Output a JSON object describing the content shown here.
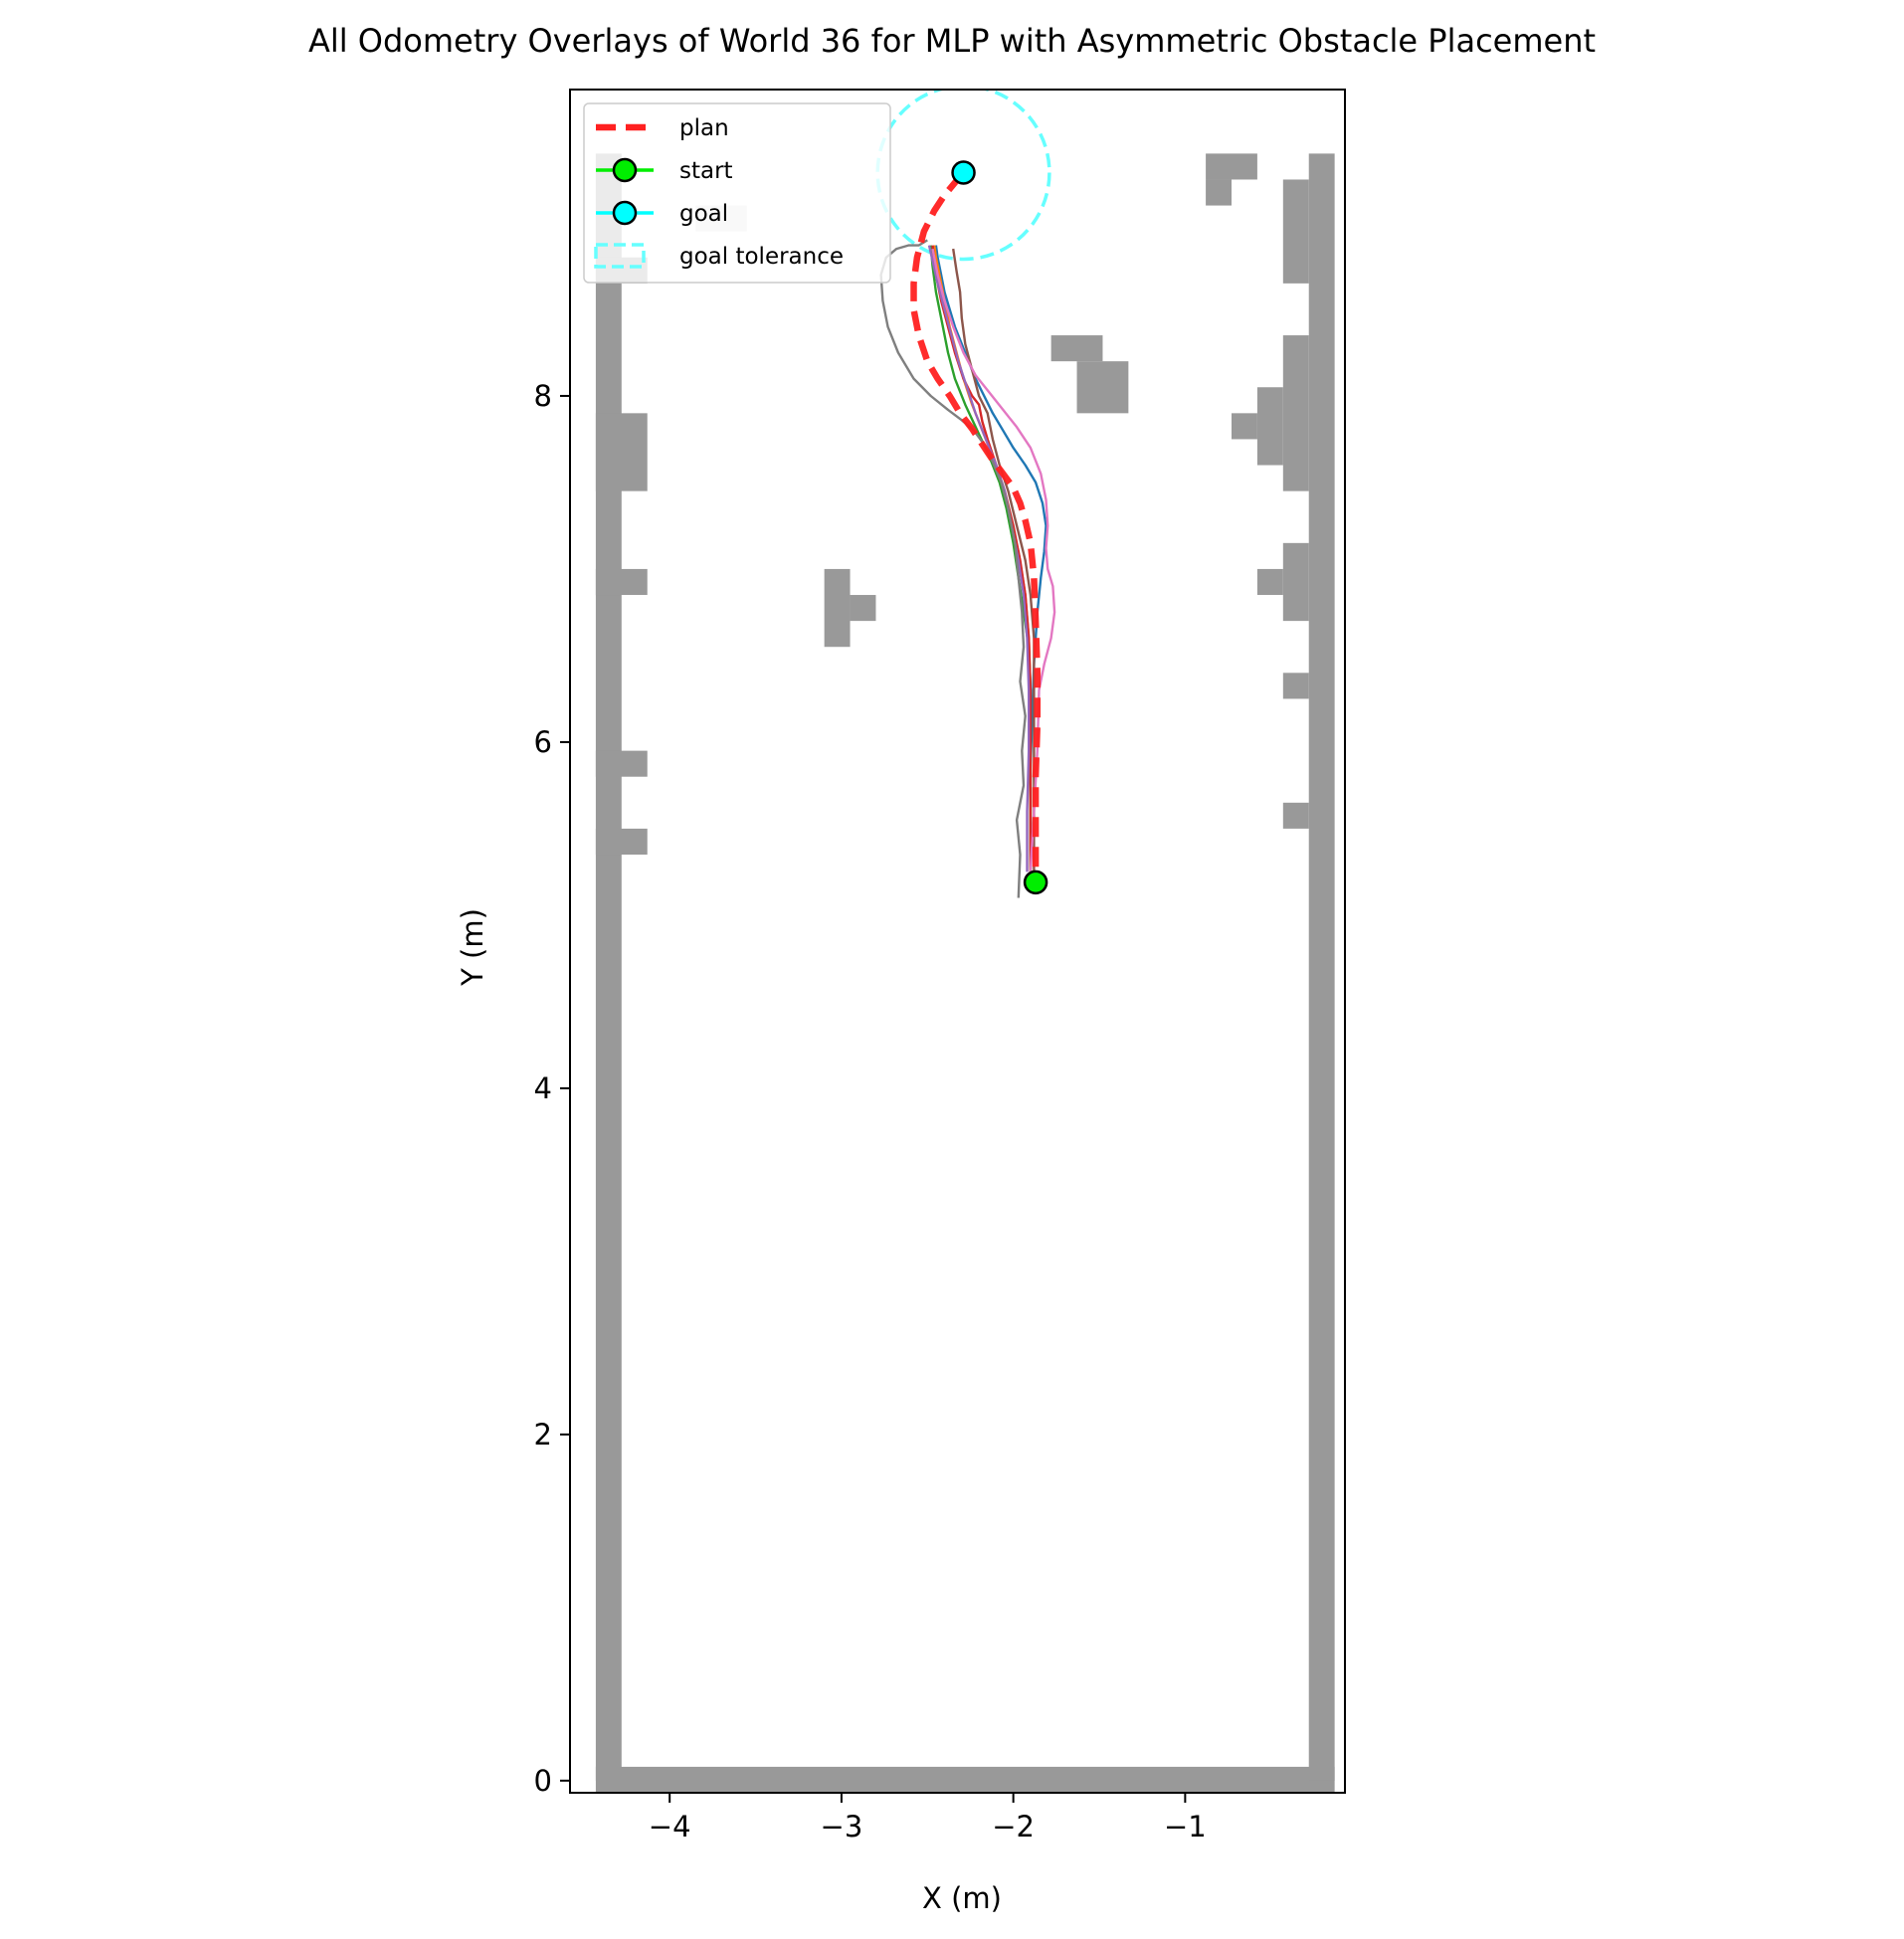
{
  "chart_data": {
    "type": "line",
    "title": "All Odometry Overlays of World 36 for MLP with Asymmetric Obstacle Placement",
    "xlabel": "X (m)",
    "ylabel": "Y (m)",
    "xlim": [
      -4.58,
      -0.07
    ],
    "ylim": [
      -0.07,
      9.77
    ],
    "x_ticks": [
      -4,
      -3,
      -2,
      -1
    ],
    "x_tick_labels": [
      "−4",
      "−3",
      "−2",
      "−1"
    ],
    "y_ticks": [
      0,
      2,
      4,
      6,
      8
    ],
    "y_tick_labels": [
      "0",
      "2",
      "4",
      "6",
      "8"
    ],
    "grid": false,
    "legend": {
      "placement": "top-left",
      "entries": [
        {
          "label": "plan",
          "color": "#ff2020",
          "style": "dashed"
        },
        {
          "label": "start",
          "color": "#00ee00",
          "style": "line-marker"
        },
        {
          "label": "goal",
          "color": "#00ffff",
          "style": "line-marker"
        },
        {
          "label": "goal tolerance",
          "color": "#66ffff",
          "style": "dashed-patch"
        }
      ]
    },
    "map": {
      "resolution": 0.15,
      "occupied_color": "#999999",
      "unknown_color": "#e0e0e0",
      "occupied_cells": [
        [
          -4.43,
          -4.28,
          0.0,
          9.4
        ],
        [
          -4.43,
          -4.13,
          7.45,
          7.9
        ],
        [
          -4.43,
          -4.13,
          6.85,
          7.0
        ],
        [
          -4.43,
          -4.13,
          5.8,
          5.95
        ],
        [
          -4.43,
          -4.13,
          5.35,
          5.5
        ],
        [
          -4.43,
          -4.13,
          8.65,
          8.8
        ],
        [
          -4.43,
          -0.13,
          -0.07,
          0.08
        ],
        [
          -0.28,
          -0.13,
          0.0,
          9.4
        ],
        [
          -0.43,
          -0.28,
          8.65,
          9.25
        ],
        [
          -0.43,
          -0.28,
          7.45,
          8.35
        ],
        [
          -0.58,
          -0.43,
          7.6,
          8.05
        ],
        [
          -0.73,
          -0.58,
          7.75,
          7.9
        ],
        [
          -0.43,
          -0.28,
          6.7,
          7.15
        ],
        [
          -0.58,
          -0.43,
          6.85,
          7.0
        ],
        [
          -0.43,
          -0.28,
          6.25,
          6.4
        ],
        [
          -0.43,
          -0.28,
          5.5,
          5.65
        ],
        [
          -0.88,
          -0.58,
          9.25,
          9.4
        ],
        [
          -0.88,
          -0.73,
          9.1,
          9.25
        ],
        [
          -3.1,
          -2.95,
          6.55,
          7.0
        ],
        [
          -2.95,
          -2.8,
          6.7,
          6.85
        ],
        [
          -1.78,
          -1.48,
          8.2,
          8.35
        ],
        [
          -1.63,
          -1.33,
          7.9,
          8.2
        ]
      ],
      "unknown_cells": [
        [
          -3.85,
          -3.55,
          8.95,
          9.1
        ]
      ]
    },
    "plan": {
      "name": "plan",
      "color": "#ff2020",
      "x": [
        -1.87,
        -1.87,
        -1.87,
        -1.86,
        -1.86,
        -1.87,
        -1.88,
        -1.9,
        -1.93,
        -1.96,
        -2.0,
        -2.06,
        -2.12,
        -2.18,
        -2.24,
        -2.31,
        -2.37,
        -2.44,
        -2.5,
        -2.55,
        -2.58,
        -2.58,
        -2.56,
        -2.52,
        -2.46,
        -2.4,
        -2.35,
        -2.3
      ],
      "y": [
        5.28,
        5.5,
        5.8,
        6.1,
        6.4,
        6.7,
        6.95,
        7.15,
        7.28,
        7.38,
        7.47,
        7.55,
        7.63,
        7.72,
        7.81,
        7.9,
        8.0,
        8.1,
        8.2,
        8.35,
        8.5,
        8.65,
        8.8,
        8.95,
        9.07,
        9.16,
        9.22,
        9.28
      ]
    },
    "start": {
      "x": -1.87,
      "y": 5.19,
      "color": "#00ee00"
    },
    "goal": {
      "x": -2.29,
      "y": 9.29,
      "color": "#00ffff",
      "tolerance": 0.5
    },
    "series": [
      {
        "color": "#1f77b4",
        "x": [
          -1.9,
          -1.9,
          -1.9,
          -1.89,
          -1.88,
          -1.86,
          -1.84,
          -1.82,
          -1.81,
          -1.83,
          -1.87,
          -1.93,
          -2.0,
          -2.06,
          -2.12,
          -2.17,
          -2.22,
          -2.26,
          -2.3,
          -2.34,
          -2.37,
          -2.4,
          -2.42,
          -2.44,
          -2.45
        ],
        "y": [
          5.25,
          5.55,
          5.85,
          6.15,
          6.45,
          6.75,
          6.95,
          7.1,
          7.25,
          7.38,
          7.5,
          7.6,
          7.7,
          7.8,
          7.9,
          8.0,
          8.1,
          8.2,
          8.3,
          8.4,
          8.5,
          8.6,
          8.7,
          8.8,
          8.87
        ]
      },
      {
        "color": "#ff7f0e",
        "x": [
          -1.9,
          -1.9,
          -1.9,
          -1.9,
          -1.91,
          -1.93,
          -1.97,
          -2.02,
          -2.07,
          -2.12,
          -2.18,
          -2.24,
          -2.29,
          -2.33,
          -2.37,
          -2.4,
          -2.43,
          -2.45,
          -2.46
        ],
        "y": [
          5.25,
          5.6,
          5.95,
          6.3,
          6.6,
          6.85,
          7.1,
          7.3,
          7.5,
          7.65,
          7.8,
          7.95,
          8.1,
          8.25,
          8.4,
          8.55,
          8.7,
          8.8,
          8.87
        ]
      },
      {
        "color": "#2ca02c",
        "x": [
          -1.9,
          -1.9,
          -1.9,
          -1.9,
          -1.91,
          -1.94,
          -1.97,
          -2.0,
          -2.04,
          -2.08,
          -2.14,
          -2.21,
          -2.28,
          -2.34,
          -2.38,
          -2.42,
          -2.45,
          -2.47,
          -2.48
        ],
        "y": [
          5.25,
          5.6,
          5.95,
          6.3,
          6.55,
          6.75,
          6.95,
          7.15,
          7.35,
          7.5,
          7.65,
          7.8,
          7.95,
          8.1,
          8.25,
          8.45,
          8.6,
          8.75,
          8.87
        ]
      },
      {
        "color": "#d62728",
        "x": [
          -1.9,
          -1.9,
          -1.9,
          -1.9,
          -1.91,
          -1.93,
          -1.96,
          -2.0,
          -2.05,
          -2.1,
          -2.15,
          -2.18,
          -2.2,
          -2.24,
          -2.29,
          -2.34,
          -2.38,
          -2.42,
          -2.45,
          -2.47
        ],
        "y": [
          5.25,
          5.6,
          5.95,
          6.3,
          6.6,
          6.85,
          7.05,
          7.25,
          7.45,
          7.6,
          7.75,
          7.85,
          7.95,
          8.0,
          8.1,
          8.25,
          8.4,
          8.55,
          8.7,
          8.87
        ]
      },
      {
        "color": "#9467bd",
        "x": [
          -1.92,
          -1.92,
          -1.91,
          -1.91,
          -1.92,
          -1.94,
          -1.97,
          -2.01,
          -2.05,
          -2.1,
          -2.16,
          -2.22,
          -2.27,
          -2.32,
          -2.36,
          -2.4,
          -2.44,
          -2.47,
          -2.49
        ],
        "y": [
          5.25,
          5.6,
          5.95,
          6.3,
          6.6,
          6.85,
          7.05,
          7.25,
          7.45,
          7.6,
          7.75,
          7.9,
          8.05,
          8.2,
          8.35,
          8.5,
          8.65,
          8.78,
          8.87
        ]
      },
      {
        "color": "#8c564b",
        "x": [
          -1.88,
          -1.88,
          -1.88,
          -1.88,
          -1.88,
          -1.9,
          -1.93,
          -1.98,
          -2.03,
          -2.08,
          -2.12,
          -2.15,
          -2.2,
          -2.24,
          -2.28,
          -2.3,
          -2.31,
          -2.33,
          -2.35
        ],
        "y": [
          5.25,
          5.6,
          5.95,
          6.3,
          6.6,
          6.85,
          7.05,
          7.25,
          7.45,
          7.6,
          7.75,
          7.9,
          8.0,
          8.15,
          8.3,
          8.45,
          8.6,
          8.72,
          8.85
        ]
      },
      {
        "color": "#e377c2",
        "x": [
          -1.9,
          -1.88,
          -1.86,
          -1.85,
          -1.82,
          -1.78,
          -1.76,
          -1.77,
          -1.8,
          -1.81,
          -1.8,
          -1.81,
          -1.84,
          -1.9,
          -1.98,
          -2.06,
          -2.14,
          -2.22,
          -2.29,
          -2.35,
          -2.4,
          -2.44,
          -2.47
        ],
        "y": [
          5.25,
          5.6,
          5.95,
          6.3,
          6.45,
          6.6,
          6.75,
          6.9,
          7.0,
          7.12,
          7.25,
          7.4,
          7.55,
          7.7,
          7.82,
          7.92,
          8.02,
          8.12,
          8.25,
          8.4,
          8.55,
          8.7,
          8.85
        ]
      },
      {
        "color": "#7f7f7f",
        "x": [
          -1.97,
          -1.96,
          -1.98,
          -1.94,
          -1.95,
          -1.93,
          -1.96,
          -1.94,
          -1.95,
          -1.97,
          -1.99,
          -2.03,
          -2.07,
          -2.12,
          -2.17,
          -2.23,
          -2.3,
          -2.38,
          -2.48,
          -2.58,
          -2.67,
          -2.73,
          -2.76,
          -2.77,
          -2.74,
          -2.68,
          -2.61,
          -2.55,
          -2.5
        ],
        "y": [
          5.1,
          5.35,
          5.55,
          5.75,
          5.95,
          6.15,
          6.35,
          6.55,
          6.75,
          6.95,
          7.15,
          7.35,
          7.5,
          7.62,
          7.72,
          7.8,
          7.86,
          7.92,
          8.0,
          8.1,
          8.25,
          8.4,
          8.55,
          8.7,
          8.8,
          8.85,
          8.87,
          8.87,
          8.9
        ]
      }
    ]
  }
}
